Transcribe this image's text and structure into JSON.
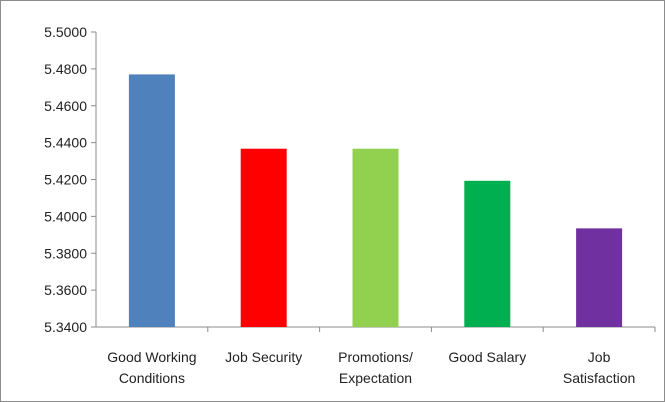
{
  "chart_data": {
    "type": "bar",
    "categories": [
      [
        "Good Working",
        "Conditions"
      ],
      [
        "Job Security"
      ],
      [
        "Promotions/",
        "Expectation"
      ],
      [
        "Good Salary"
      ],
      [
        "Job",
        "Satisfaction"
      ]
    ],
    "values": [
      5.477,
      5.4367,
      5.4367,
      5.4193,
      5.3935
    ],
    "bar_colors": [
      "#4f81bd",
      "#ff0000",
      "#92d050",
      "#00b050",
      "#7030a0"
    ],
    "ylim": [
      5.34,
      5.5
    ],
    "yticks": [
      "5.3400",
      "5.3600",
      "5.3800",
      "5.4000",
      "5.4200",
      "5.4400",
      "5.4600",
      "5.4800",
      "5.5000"
    ],
    "ytick_values": [
      5.34,
      5.36,
      5.38,
      5.4,
      5.42,
      5.44,
      5.46,
      5.48,
      5.5
    ],
    "grid": false,
    "legend": false,
    "title": "",
    "xlabel": "",
    "ylabel": ""
  }
}
